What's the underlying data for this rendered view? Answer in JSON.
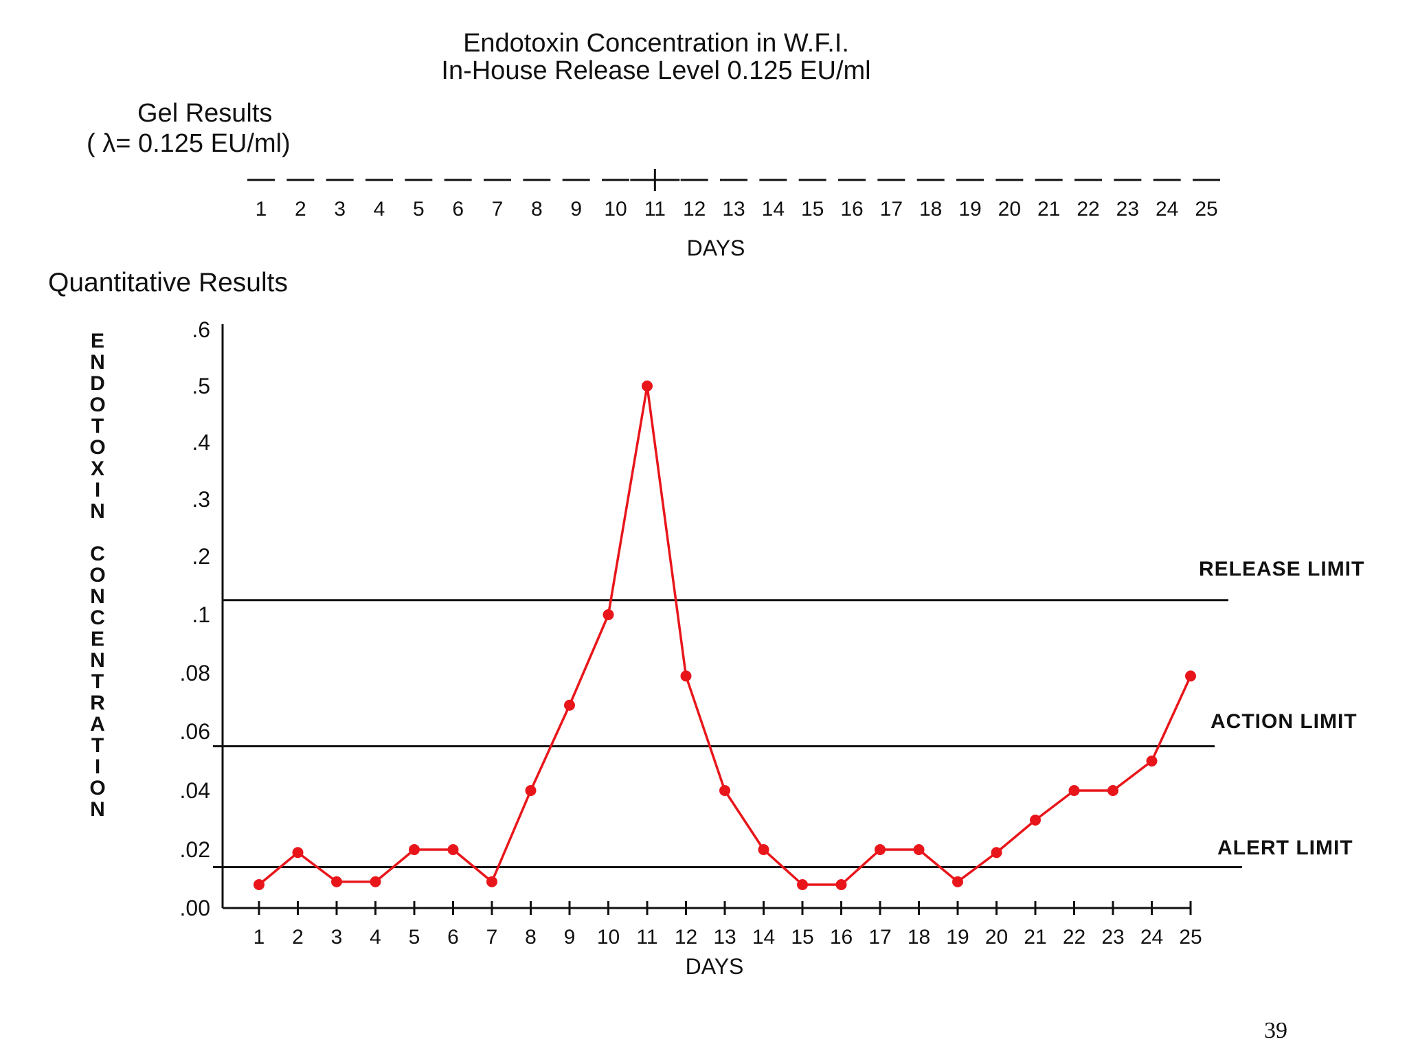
{
  "title_line1": "Endotoxin Concentration in W.F.I.",
  "title_line2": "In-House Release Level 0.125 EU/ml",
  "gel": {
    "title": "Gel Results",
    "lambda": "( λ= 0.125 EU/ml)",
    "xlabel": "DAYS",
    "days": [
      "1",
      "2",
      "3",
      "4",
      "5",
      "6",
      "7",
      "8",
      "9",
      "10",
      "11",
      "12",
      "13",
      "14",
      "15",
      "16",
      "17",
      "18",
      "19",
      "20",
      "21",
      "22",
      "23",
      "24",
      "25"
    ],
    "results": [
      "-",
      "-",
      "-",
      "-",
      "-",
      "-",
      "-",
      "-",
      "-",
      "-",
      "+",
      "-",
      "-",
      "-",
      "-",
      "-",
      "-",
      "-",
      "-",
      "-",
      "-",
      "-",
      "-",
      "-",
      "-"
    ]
  },
  "quant_title": "Quantitative Results",
  "page_number": "39",
  "colors": {
    "line": "#e8161b",
    "ink": "#111111"
  },
  "chart_data": {
    "type": "line",
    "title": "Quantitative Results",
    "xlabel": "DAYS",
    "ylabel": "ENDOTOXIN CONCENTRATION",
    "ylabel_letters": [
      "E",
      "N",
      "D",
      "O",
      "T",
      "O",
      "X",
      "I",
      "N",
      "",
      "C",
      "O",
      "N",
      "C",
      "E",
      "N",
      "T",
      "R",
      "A",
      "T",
      "I",
      "O",
      "N"
    ],
    "y_scale": "piecewise",
    "y_ticks": [
      0,
      0.02,
      0.04,
      0.06,
      0.08,
      0.1,
      0.2,
      0.3,
      0.4,
      0.5,
      0.6
    ],
    "y_tick_labels": [
      ".00",
      ".02",
      ".04",
      ".06",
      ".08",
      ".1",
      ".2",
      ".3",
      ".4",
      ".5",
      ".6"
    ],
    "x": [
      1,
      2,
      3,
      4,
      5,
      6,
      7,
      8,
      9,
      10,
      11,
      12,
      13,
      14,
      15,
      16,
      17,
      18,
      19,
      20,
      21,
      22,
      23,
      24,
      25
    ],
    "x_tick_labels": [
      "1",
      "2",
      "3",
      "4",
      "5",
      "6",
      "7",
      "8",
      "9",
      "10",
      "11",
      "12",
      "13",
      "14",
      "15",
      "16",
      "17",
      "18",
      "19",
      "20",
      "21",
      "22",
      "23",
      "24",
      "25"
    ],
    "series": [
      {
        "name": "Endotoxin concentration",
        "values": [
          0.008,
          0.019,
          0.009,
          0.009,
          0.02,
          0.02,
          0.009,
          0.04,
          0.069,
          0.1,
          0.5,
          0.079,
          0.04,
          0.02,
          0.008,
          0.008,
          0.02,
          0.02,
          0.009,
          0.019,
          0.03,
          0.04,
          0.04,
          0.05,
          0.079
        ]
      }
    ],
    "reference_lines": [
      {
        "label": "RELEASE LIMIT",
        "value": 0.125
      },
      {
        "label": "ACTION LIMIT",
        "value": 0.055
      },
      {
        "label": "ALERT LIMIT",
        "value": 0.014
      }
    ]
  }
}
